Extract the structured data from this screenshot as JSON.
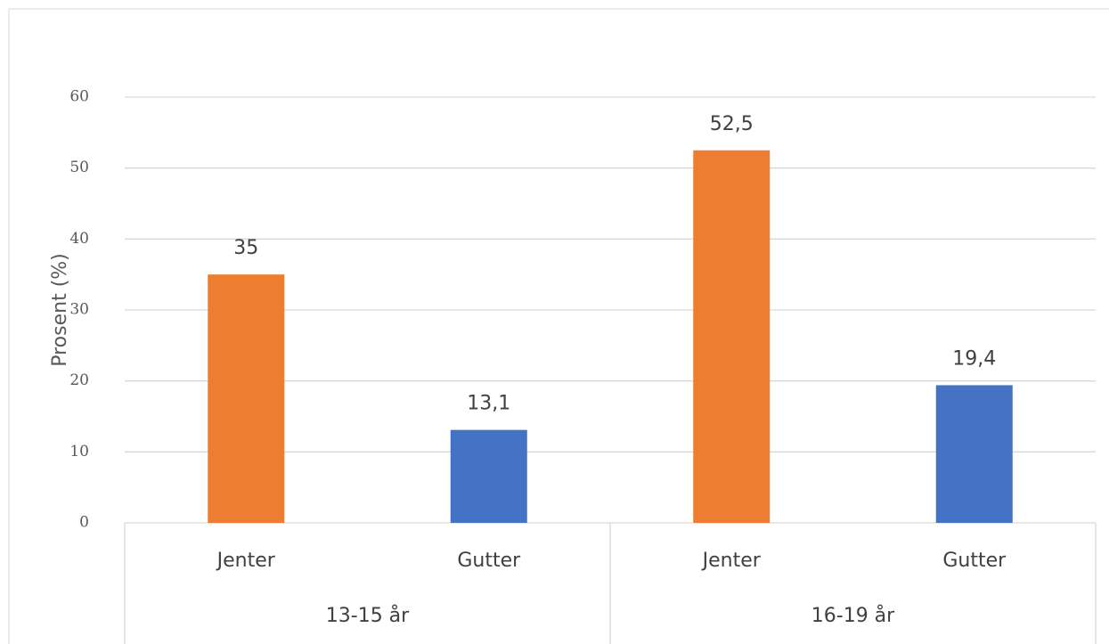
{
  "chart_data": {
    "type": "bar",
    "ylabel": "Prosent (%)",
    "categories": [
      "Jenter",
      "Gutter",
      "Jenter",
      "Gutter"
    ],
    "groups": [
      "13-15 år",
      "16-19 år"
    ],
    "values": [
      35,
      13.1,
      52.5,
      19.4
    ],
    "value_labels": [
      "35",
      "13,1",
      "52,5",
      "19,4"
    ],
    "colors": [
      "#ED7D31",
      "#4472C4",
      "#ED7D31",
      "#4472C4"
    ],
    "ylim": [
      0,
      60
    ],
    "yticks": [
      0,
      10,
      20,
      30,
      40,
      50,
      60
    ],
    "grid": true
  }
}
